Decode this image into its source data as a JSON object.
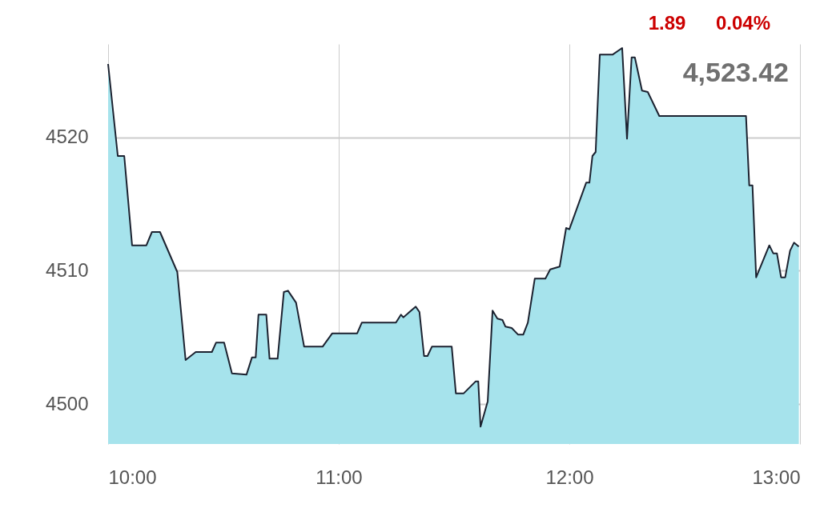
{
  "chart_data": {
    "type": "area",
    "annotations": [
      "1.89",
      "0.04%",
      "4,523.42"
    ],
    "x": [
      10.0,
      10.042,
      10.07,
      10.104,
      10.166,
      10.19,
      10.225,
      10.3,
      10.336,
      10.38,
      10.45,
      10.468,
      10.503,
      10.537,
      10.6,
      10.624,
      10.64,
      10.652,
      10.686,
      10.7,
      10.735,
      10.762,
      10.78,
      10.815,
      10.85,
      10.93,
      10.972,
      11.08,
      11.1,
      11.248,
      11.27,
      11.28,
      11.334,
      11.35,
      11.37,
      11.385,
      11.404,
      11.49,
      11.508,
      11.542,
      11.594,
      11.605,
      11.615,
      11.646,
      11.667,
      11.688,
      11.71,
      11.723,
      11.75,
      11.778,
      11.8,
      11.82,
      11.85,
      11.896,
      11.917,
      11.958,
      11.986,
      12.0,
      12.073,
      12.087,
      12.1,
      12.114,
      12.132,
      12.187,
      12.229,
      12.25,
      12.27,
      12.284,
      12.315,
      12.34,
      12.39,
      12.766,
      12.78,
      12.794,
      12.81,
      12.867,
      12.884,
      12.9,
      12.918,
      12.936,
      12.957,
      12.974,
      12.995
    ],
    "series": [
      {
        "color": "#a6e3ec",
        "values": [
          4525.5,
          4518.6,
          4518.6,
          4511.9,
          4511.9,
          4512.9,
          4512.9,
          4509.9,
          4503.3,
          4503.9,
          4503.9,
          4504.6,
          4504.6,
          4502.3,
          4502.2,
          4503.5,
          4503.5,
          4506.7,
          4506.7,
          4503.4,
          4503.4,
          4508.4,
          4508.5,
          4507.6,
          4504.3,
          4504.3,
          4505.3,
          4505.3,
          4506.1,
          4506.1,
          4506.7,
          4506.5,
          4507.3,
          4506.9,
          4503.6,
          4503.6,
          4504.3,
          4504.3,
          4500.8,
          4500.8,
          4501.7,
          4501.7,
          4498.3,
          4500.2,
          4507.0,
          4506.4,
          4506.3,
          4505.8,
          4505.7,
          4505.2,
          4505.2,
          4506.1,
          4509.4,
          4509.4,
          4510.1,
          4510.3,
          4513.2,
          4513.1,
          4516.6,
          4516.6,
          4518.6,
          4518.9,
          4526.2,
          4526.2,
          4526.7,
          4519.9,
          4526.0,
          4526.0,
          4523.5,
          4523.4,
          4521.6,
          4521.6,
          4516.4,
          4516.4,
          4509.5,
          4511.9,
          4511.3,
          4511.3,
          4509.5,
          4509.5,
          4511.5,
          4512.1,
          4511.8
        ]
      }
    ],
    "xlim": [
      10,
      13
    ],
    "xticks": [
      {
        "value": 10,
        "label": "10:00"
      },
      {
        "value": 11,
        "label": "11:00"
      },
      {
        "value": 12,
        "label": "12:00"
      },
      {
        "value": 13,
        "label": "13:00"
      }
    ],
    "ylim": [
      4497,
      4527
    ],
    "yticks": [
      4500,
      4510,
      4520
    ],
    "grid": true
  }
}
